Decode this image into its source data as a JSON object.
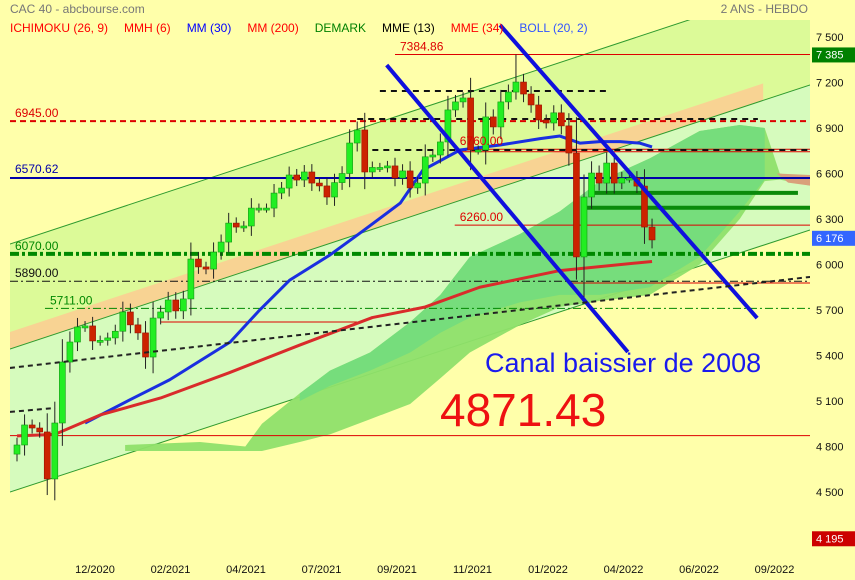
{
  "header": {
    "title": "CAC 40 - abcbourse.com",
    "period": "2 ANS - HEBDO"
  },
  "legend": [
    {
      "label": "ICHIMOKU (26, 9)",
      "color": "#ff0000"
    },
    {
      "label": "MMH (6)",
      "color": "#ff0000"
    },
    {
      "label": "MM (30)",
      "color": "#0000ff"
    },
    {
      "label": "MM (200)",
      "color": "#ff0000"
    },
    {
      "label": "DEMARK",
      "color": "#008000"
    },
    {
      "label": "MME (13)",
      "color": "#000000"
    },
    {
      "label": "MME (34)",
      "color": "#ff0000"
    },
    {
      "label": "BOLL (20, 2)",
      "color": "#3355ff"
    }
  ],
  "chart_data": {
    "type": "candlestick",
    "ylim": [
      4195,
      7550
    ],
    "y_ticks": [
      "7 500",
      "7 200",
      "6 900",
      "6 600",
      "6 300",
      "6 000",
      "5 700",
      "5 400",
      "5 100",
      "4 800",
      "4 500"
    ],
    "y_tick_values": [
      7500,
      7200,
      6900,
      6600,
      6300,
      6000,
      5700,
      5400,
      5100,
      4800,
      4500
    ],
    "x_tick_labels": [
      "12/2020",
      "02/2021",
      "04/2021",
      "07/2021",
      "09/2021",
      "11/2021",
      "01/2022",
      "04/2022",
      "06/2022",
      "09/2022"
    ],
    "grid": false,
    "candles": {
      "first_open": 4750,
      "close": [
        4810,
        4942,
        4922,
        4896,
        4586,
        4955,
        5357,
        5489,
        5588,
        5595,
        5496,
        5500,
        5516,
        5560,
        5687,
        5602,
        5549,
        5390,
        5647,
        5687,
        5766,
        5694,
        5773,
        6036,
        5984,
        5970,
        6082,
        6148,
        6273,
        6247,
        6254,
        6372,
        6372,
        6372,
        6471,
        6504,
        6590,
        6557,
        6610,
        6537,
        6518,
        6445,
        6540,
        6600,
        6801,
        6887,
        6610,
        6640,
        6640,
        6650,
        6570,
        6617,
        6505,
        6537,
        6710,
        6722,
        6808,
        7019,
        7072,
        7098,
        6755,
        6755,
        6973,
        6907,
        7072,
        7137,
        7203,
        7124,
        7052,
        6953,
        6933,
        7000,
        6914,
        6735,
        6050,
        6445,
        6603,
        6537,
        6669,
        6537,
        6570,
        6570,
        6517,
        6247,
        6162
      ],
      "extremes": {
        "5": {
          "low": 4480
        },
        "67": {
          "high": 7384.86
        },
        "76": {
          "low": 5750
        },
        "75": {
          "low": 5900
        }
      }
    },
    "moving_averages": [
      {
        "name": "MM (30)",
        "color": "#1a2fe0",
        "points": [
          [
            10,
            4955
          ],
          [
            15.9,
            5107
          ],
          [
            21.2,
            5240
          ],
          [
            29.2,
            5489
          ],
          [
            33.1,
            5700
          ],
          [
            37.1,
            5898
          ],
          [
            42.4,
            6063
          ],
          [
            46.4,
            6208
          ],
          [
            51.7,
            6405
          ],
          [
            54.7,
            6623
          ],
          [
            59.6,
            6755
          ],
          [
            64.9,
            6788
          ],
          [
            70.2,
            6830
          ],
          [
            72.8,
            6847
          ],
          [
            75.5,
            6800
          ],
          [
            78.1,
            6810
          ],
          [
            80.8,
            6810
          ],
          [
            83.4,
            6800
          ],
          [
            85,
            6775
          ]
        ]
      },
      {
        "name": "MM (200)",
        "color": "#d92b2b",
        "points": [
          [
            1,
            4870
          ],
          [
            6,
            4880
          ],
          [
            12,
            5008
          ],
          [
            20,
            5120
          ],
          [
            29,
            5285
          ],
          [
            38.4,
            5469
          ],
          [
            48,
            5650
          ],
          [
            55,
            5720
          ],
          [
            62.2,
            5850
          ],
          [
            72.8,
            5960
          ],
          [
            85,
            6020
          ]
        ]
      }
    ],
    "ichimoku_cloud": {
      "outer": [
        [
          15.3,
          4810,
          4770
        ],
        [
          25.2,
          4830,
          4770
        ],
        [
          31.2,
          4800,
          4770
        ],
        [
          33.4,
          4950,
          4770
        ],
        [
          38.4,
          5150,
          4830
        ],
        [
          42.4,
          5300,
          4880
        ],
        [
          47.7,
          5420,
          4980
        ],
        [
          53,
          5620,
          5080
        ],
        [
          57,
          5800,
          5250
        ],
        [
          60.9,
          6050,
          5420
        ],
        [
          67.5,
          6200,
          5600
        ],
        [
          72.8,
          6350,
          5720
        ],
        [
          78.1,
          6550,
          5760
        ],
        [
          84.7,
          6700,
          5800
        ],
        [
          91.3,
          6880,
          6000
        ],
        [
          96.6,
          6920,
          6300
        ],
        [
          99.9,
          6900,
          6550
        ],
        [
          101.9,
          6600,
          6560
        ],
        [
          105.9,
          6560,
          6520
        ]
      ],
      "inner": [
        [
          38.4,
          5150,
          5100
        ],
        [
          42.4,
          5300,
          5200
        ],
        [
          47.7,
          5420,
          5300
        ],
        [
          53,
          5620,
          5420
        ],
        [
          57,
          5800,
          5550
        ],
        [
          60.9,
          6050,
          5650
        ],
        [
          67.5,
          6200,
          5750
        ],
        [
          72.8,
          6350,
          5800
        ],
        [
          78.1,
          6550,
          5800
        ],
        [
          84.7,
          6700,
          5850
        ],
        [
          91.3,
          6880,
          6050
        ],
        [
          96.6,
          6920,
          6350
        ],
        [
          99.9,
          6900,
          6560
        ]
      ],
      "colors": {
        "outer": "#8fe06a",
        "inner": "#74dc7c",
        "edge": "#d9a07a"
      }
    },
    "green_channel": {
      "upper": [
        [
          0.07,
          6135
        ],
        [
          105.9,
          7876
        ]
      ],
      "middle": [
        [
          0.07,
          5443
        ],
        [
          105.9,
          7184
        ]
      ],
      "lower": [
        [
          0.07,
          4500
        ],
        [
          105.9,
          6228
        ]
      ],
      "orange_band_end": 99.7,
      "colors": {
        "upper_fill": "#dcfa98",
        "lower_fill": "#d6fbbd",
        "band": "#f8d393",
        "line": "#2f9b2f"
      }
    },
    "trendlines": [
      {
        "name": "canal-baissier-upper",
        "color": "#1010dd",
        "points": [
          [
            64.9,
            7579
          ],
          [
            98.9,
            5647
          ]
        ]
      },
      {
        "name": "canal-baissier-lower",
        "color": "#1010dd",
        "points": [
          [
            49.9,
            7315
          ],
          [
            81.8,
            5423
          ]
        ]
      },
      {
        "name": "dashed-support",
        "color": "#222222",
        "points": [
          [
            0.07,
            5318
          ],
          [
            105.9,
            5918
          ]
        ]
      },
      {
        "name": "dashed-support-short",
        "color": "#222222",
        "points": [
          [
            0.07,
            5028
          ],
          [
            6.03,
            5054
          ]
        ]
      }
    ],
    "levels": [
      {
        "value": 7384.86,
        "label": "7384.86",
        "color": "#dd0000",
        "style": "solid",
        "from": 51
      },
      {
        "value": 6945,
        "label": "6945.00",
        "color": "#dd0000",
        "style": "dashed",
        "from": 0
      },
      {
        "value": 6570.62,
        "label": "6570.62",
        "color": "#0000aa",
        "style": "thick",
        "from": 0
      },
      {
        "value": 6760,
        "label": "6760.00",
        "color": "#dd0000",
        "style": "double",
        "from": 58.9
      },
      {
        "value": 6260,
        "label": "6260.00",
        "color": "#dd0000",
        "style": "solid",
        "from": 58.9
      },
      {
        "value": 6070,
        "label": "6070.00",
        "color": "#008800",
        "style": "dashdot-thick",
        "from": 0
      },
      {
        "value": 5890,
        "label": "5890.00",
        "color": "#111111",
        "style": "dashdot",
        "from": 0
      },
      {
        "value": 5711,
        "label": "5711.00",
        "color": "#008800",
        "style": "dashdot",
        "from": 4.7
      },
      {
        "value": 4871.43,
        "label": "4871.43",
        "color": "#dd0000",
        "style": "solid",
        "from": 0
      }
    ],
    "segments": [
      {
        "value": 5621,
        "color": "#dd0000",
        "style": "solid",
        "from": 20,
        "to": 46
      },
      {
        "value": 5878,
        "color": "#dd0000",
        "style": "solid",
        "from": 74,
        "to": 105.9
      },
      {
        "value": 7144,
        "color": "#111111",
        "style": "dashed",
        "from": 49,
        "to": 79
      },
      {
        "value": 6959,
        "color": "#111111",
        "style": "dashed",
        "from": 46,
        "to": 99
      },
      {
        "value": 6755,
        "color": "#111111",
        "style": "dashed",
        "from": 48,
        "to": 105.9
      }
    ],
    "demark_bars": [
      {
        "value": 6472,
        "from": 76.8,
        "to": 104.3
      },
      {
        "value": 6374,
        "from": 76.1,
        "to": 105.9
      }
    ],
    "price_badges": [
      {
        "label": "7 385",
        "value": 7385,
        "color": "#008000"
      },
      {
        "label": "6 176",
        "value": 6176,
        "color": "#3366ff"
      },
      {
        "label": "4 195",
        "value": 4195,
        "color": "#cc0000"
      }
    ],
    "annotations": {
      "channel_text": "Canal baissier de 2008",
      "big_value": "4871.43"
    }
  }
}
